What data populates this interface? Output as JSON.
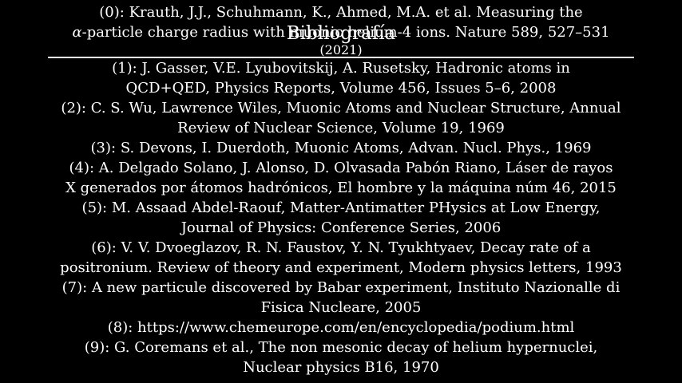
{
  "slide": {
    "title": "Bibliografía",
    "references": [
      {
        "label": "(0):",
        "line1": "Krauth, J.J., Schuhmann, K., Ahmed, M.A. et al. Measuring the",
        "alpha": "α",
        "line2_rest": "-particle charge radius with muonic helium-4 ions. Nature 589, 527–531",
        "line3": "(2021)"
      },
      {
        "label": "(1):",
        "line1": "J. Gasser, V.E. Lyubovitskij, A. Rusetsky, Hadronic atoms in",
        "line2": "QCD+QED, Physics Reports, Volume 456, Issues 5–6, 2008"
      },
      {
        "label": "(2):",
        "line1": "C. S. Wu, Lawrence Wiles, Muonic Atoms and Nuclear Structure, Annual",
        "line2": "Review of Nuclear Science, Volume 19, 1969"
      },
      {
        "label": "(3):",
        "line1": "S. Devons, I. Duerdoth, Muonic Atoms, Advan. Nucl. Phys., 1969"
      },
      {
        "label": "(4):",
        "line1": "A. Delgado Solano, J. Alonso, D. Olvasada Pabón Riano, Láser de rayos",
        "line2": "X generados por átomos hadrónicos, El hombre y la máquina núm 46, 2015"
      },
      {
        "label": "(5):",
        "line1": "M. Assaad Abdel-Raouf, Matter-Antimatter PHysics at Low Energy,",
        "line2": "Journal of Physics: Conference Series, 2006"
      },
      {
        "label": "(6):",
        "line1": "V. V. Dvoeglazov, R. N. Faustov, Y. N. Tyukhtyaev, Decay rate of a",
        "line2": "positronium. Review of theory and experiment, Modern physics letters, 1993"
      },
      {
        "label": "(7):",
        "line1": "A new particule discovered by Babar experiment, Instituto Nazionalle di",
        "line2": "Fisica Nucleare, 2005"
      },
      {
        "label": "(8):",
        "line1": "https://www.chemeurope.com/en/encyclopedia/podium.html"
      },
      {
        "label": "(9):",
        "line1": "G. Coremans et al., The non mesonic decay of helium hypernuclei,",
        "line2": "Nuclear physics B16, 1970"
      }
    ]
  }
}
